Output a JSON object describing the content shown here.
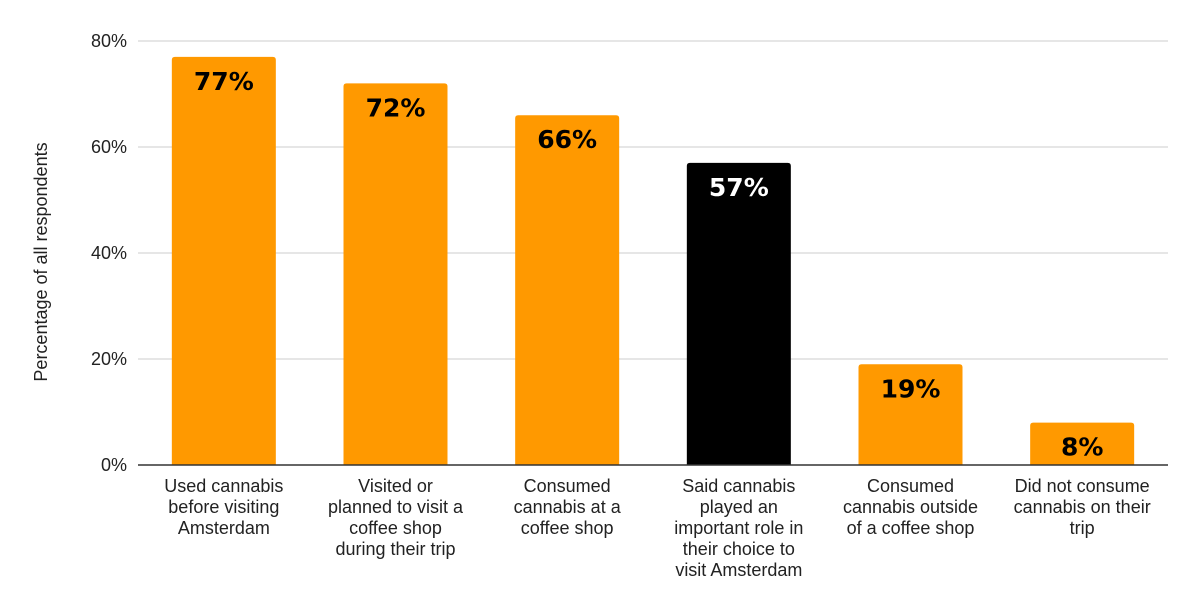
{
  "chart_data": {
    "type": "bar",
    "ylabel": "Percentage of all respondents",
    "ylim": [
      0,
      80
    ],
    "y_ticks": [
      0,
      20,
      40,
      60,
      80
    ],
    "y_tick_labels": [
      "0%",
      "20%",
      "40%",
      "60%",
      "80%"
    ],
    "grid": true,
    "categories": [
      [
        "Used cannabis",
        "before visiting",
        "Amsterdam"
      ],
      [
        "Visited or",
        "planned to visit a",
        "coffee shop",
        "during their trip"
      ],
      [
        "Consumed",
        "cannabis at a",
        "coffee shop"
      ],
      [
        "Said cannabis",
        "played an",
        "important role in",
        "their choice to",
        "visit Amsterdam"
      ],
      [
        "Consumed",
        "cannabis outside",
        "of a coffee shop"
      ],
      [
        "Did not consume",
        "cannabis on their",
        "trip"
      ]
    ],
    "values": [
      77,
      72,
      66,
      57,
      19,
      8
    ],
    "value_labels": [
      "77%",
      "72%",
      "66%",
      "57%",
      "19%",
      "8%"
    ],
    "bar_colors": [
      "#ff9900",
      "#ff9900",
      "#ff9900",
      "#000000",
      "#ff9900",
      "#ff9900"
    ],
    "label_colors": [
      "#000000",
      "#000000",
      "#000000",
      "#ffffff",
      "#000000",
      "#000000"
    ],
    "gridline_color": "#cccccc",
    "axis_color": "#333333"
  }
}
